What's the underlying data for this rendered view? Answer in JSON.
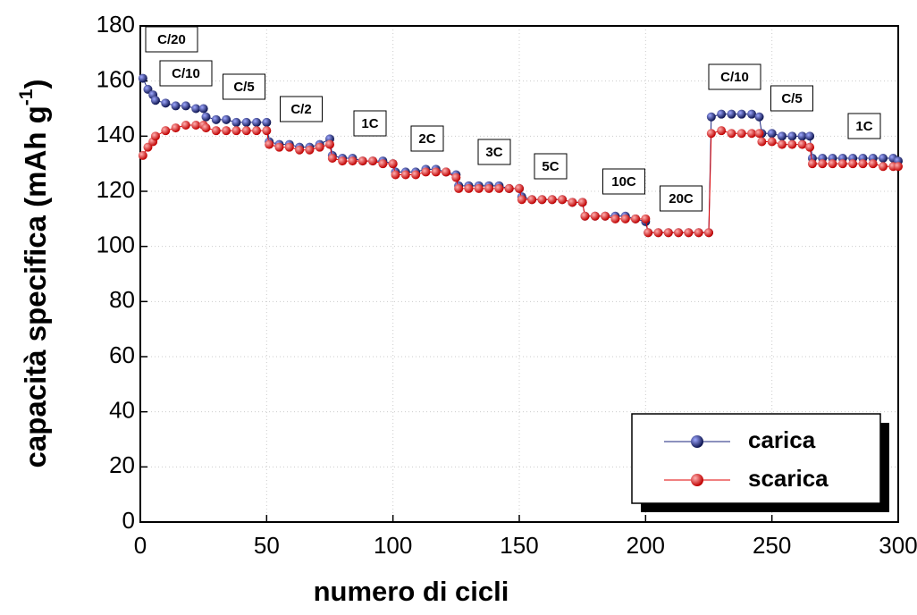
{
  "chart_data": {
    "type": "scatter",
    "x_label": "numero di cicli",
    "y_label": "capacità specifica (mAh g",
    "y_label_sup": "-1",
    "y_label_end": ")",
    "xlim": [
      0,
      300
    ],
    "xticks": [
      0,
      50,
      100,
      150,
      200,
      250,
      300
    ],
    "ylim": [
      0,
      180
    ],
    "yticks": [
      0,
      20,
      40,
      60,
      80,
      100,
      120,
      140,
      160,
      180
    ],
    "grid": true,
    "legend": "lower right",
    "x": [
      1,
      3,
      5,
      6,
      10,
      14,
      18,
      22,
      25,
      26,
      30,
      34,
      38,
      42,
      46,
      50,
      51,
      55,
      59,
      63,
      67,
      71,
      75,
      76,
      80,
      84,
      88,
      92,
      96,
      100,
      101,
      105,
      109,
      113,
      117,
      121,
      125,
      126,
      130,
      134,
      138,
      142,
      146,
      150,
      151,
      155,
      159,
      163,
      167,
      171,
      175,
      176,
      180,
      184,
      188,
      192,
      196,
      200,
      201,
      205,
      209,
      213,
      217,
      221,
      225,
      226,
      230,
      234,
      238,
      242,
      245,
      246,
      250,
      254,
      258,
      262,
      265,
      266,
      270,
      274,
      278,
      282,
      286,
      290,
      294,
      298,
      300
    ],
    "series": [
      {
        "name": "carica",
        "color": "#1a237e",
        "values": [
          161,
          157,
          155,
          153,
          152,
          151,
          151,
          150,
          150,
          147,
          146,
          146,
          145,
          145,
          145,
          145,
          138,
          137,
          137,
          136,
          136,
          137,
          139,
          133,
          132,
          132,
          131,
          131,
          131,
          130,
          127,
          127,
          127,
          128,
          128,
          127,
          126,
          122,
          122,
          122,
          122,
          122,
          121,
          121,
          118,
          117,
          117,
          117,
          117,
          116,
          116,
          111,
          111,
          111,
          111,
          111,
          110,
          109,
          105,
          105,
          105,
          105,
          105,
          105,
          105,
          147,
          148,
          148,
          148,
          148,
          147,
          141,
          141,
          140,
          140,
          140,
          140,
          132,
          132,
          132,
          132,
          132,
          132,
          132,
          132,
          132,
          131
        ]
      },
      {
        "name": "scarica",
        "color": "#e00000",
        "values": [
          133,
          136,
          138,
          140,
          142,
          143,
          144,
          144,
          144,
          143,
          142,
          142,
          142,
          142,
          142,
          142,
          137,
          136,
          136,
          135,
          135,
          136,
          137,
          132,
          131,
          131,
          131,
          131,
          130,
          130,
          126,
          126,
          126,
          127,
          127,
          127,
          125,
          121,
          121,
          121,
          121,
          121,
          121,
          121,
          117,
          117,
          117,
          117,
          117,
          116,
          116,
          111,
          111,
          111,
          110,
          110,
          110,
          110,
          105,
          105,
          105,
          105,
          105,
          105,
          105,
          141,
          142,
          141,
          141,
          141,
          141,
          138,
          138,
          137,
          137,
          137,
          136,
          130,
          130,
          130,
          130,
          130,
          130,
          130,
          129,
          129,
          129
        ]
      }
    ],
    "annotations": [
      "C/20",
      "C/10",
      "C/5",
      "C/2",
      "1C",
      "2C",
      "3C",
      "5C",
      "10C",
      "20C",
      "C/10",
      "C/5",
      "1C"
    ]
  }
}
